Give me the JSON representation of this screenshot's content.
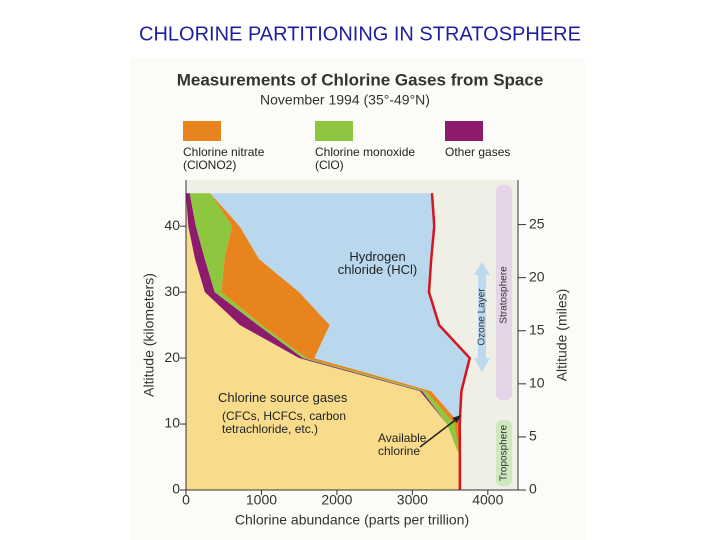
{
  "slide_title": "CHLORINE PARTITIONING IN STRATOSPHERE",
  "chart_data": {
    "type": "area",
    "stacked": true,
    "orientation": "horizontal",
    "title": "Measurements of Chlorine Gases from Space",
    "subtitle": "November 1994 (35°-49°N)",
    "x_label": "Chlorine abundance (parts per trillion)",
    "y_label": "Altitude (kilometers)",
    "y2_label": "Altitude (miles)",
    "y": [
      0,
      5,
      10,
      15,
      20,
      25,
      30,
      35,
      40,
      45
    ],
    "series": [
      {
        "name": "Chlorine source gases",
        "color": "#f8dc8c",
        "values": [
          3630,
          3630,
          3457,
          3100,
          1500,
          715,
          250,
          120,
          30,
          0
        ]
      },
      {
        "name": "Other gases",
        "color": "#8e1a6e",
        "values": [
          0,
          0,
          0,
          30,
          50,
          240,
          130,
          130,
          100,
          50
        ]
      },
      {
        "name": "Chlorine monoxide (ClO)",
        "color": "#8dc63f",
        "values": [
          0,
          0,
          100,
          50,
          50,
          50,
          90,
          260,
          480,
          270
        ]
      },
      {
        "name": "Chlorine nitrate (ClONO2)",
        "color": "#e8841e",
        "values": [
          0,
          0,
          70,
          70,
          100,
          900,
          1030,
          460,
          100,
          0
        ]
      },
      {
        "name": "Hydrogen chloride (HCl)",
        "color": "#b9d8ee",
        "values": [
          0,
          0,
          0,
          400,
          2060,
          1450,
          1720,
          2280,
          2580,
          2940
        ]
      }
    ],
    "total_line_color": "#d8141e",
    "xlim": [
      0,
      4400
    ],
    "xticks": [
      0,
      1000,
      2000,
      3000,
      4000
    ],
    "ylim": [
      0,
      47
    ],
    "yticks": [
      0,
      10,
      20,
      30,
      40
    ],
    "y2lim": [
      0,
      29.2
    ],
    "y2ticks": [
      0,
      5,
      10,
      15,
      20,
      25
    ],
    "annotations": [
      "(CFCs, HCFCs, carbon tetrachloride, etc.)",
      "Available chlorine"
    ],
    "layers": [
      "Ozone Layer",
      "Stratosphere",
      "Troposphere"
    ]
  }
}
